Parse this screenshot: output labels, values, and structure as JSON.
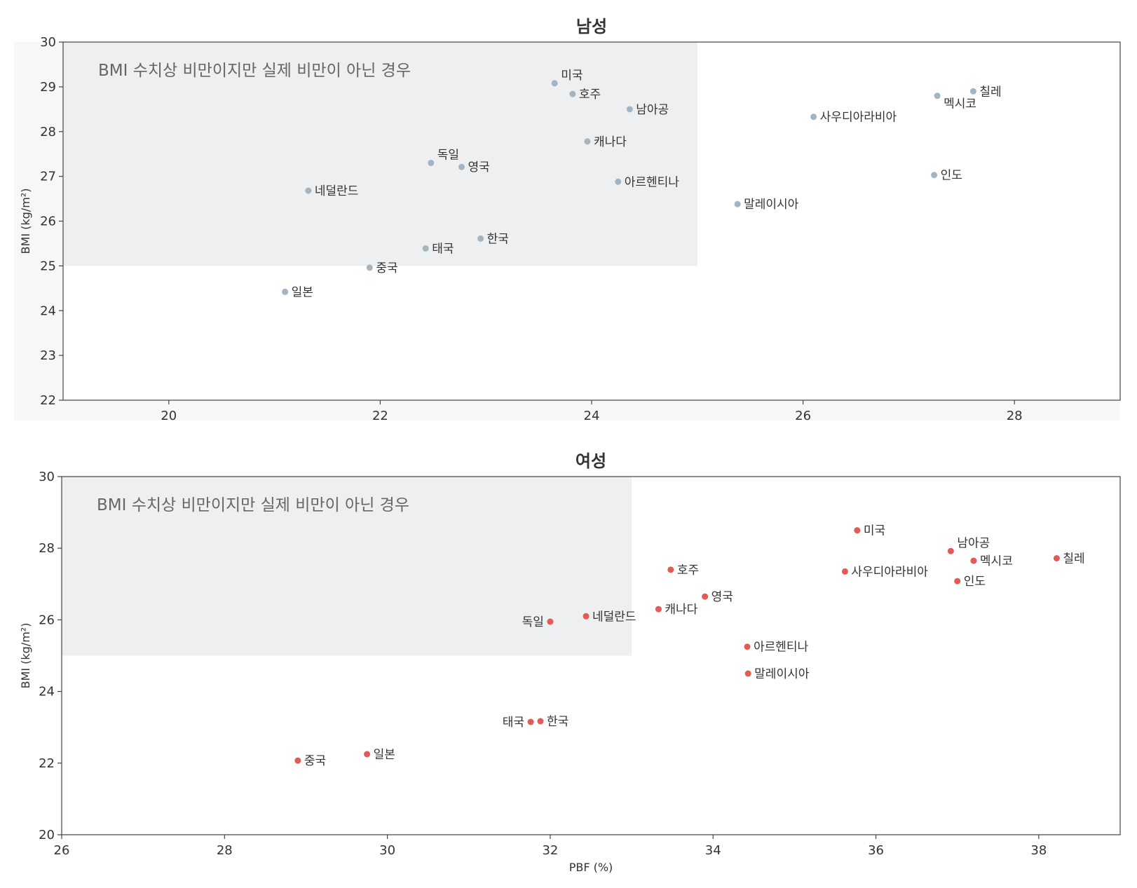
{
  "colors": {
    "male": "#a4b4c0",
    "female": "#e15b57",
    "shade": "#eeeff1",
    "frame": "#444444"
  },
  "chart_data": [
    {
      "type": "scatter",
      "title": "남성",
      "xlabel": "",
      "ylabel": "BMI (kg/m²)",
      "xlim": [
        19,
        29
      ],
      "ylim": [
        22,
        30
      ],
      "xticks": [
        20,
        22,
        24,
        26,
        28
      ],
      "yticks": [
        22,
        23,
        24,
        25,
        26,
        27,
        28,
        29,
        30
      ],
      "shade": {
        "x": [
          19,
          25
        ],
        "y": [
          25,
          30
        ],
        "label": "BMI 수치상 비만이지만 실제 비만이 아닌 경우"
      },
      "points": [
        {
          "label": "미국",
          "x": 23.65,
          "y": 29.08
        },
        {
          "label": "호주",
          "x": 23.82,
          "y": 28.84
        },
        {
          "label": "남아공",
          "x": 24.36,
          "y": 28.5
        },
        {
          "label": "캐나다",
          "x": 23.96,
          "y": 27.78
        },
        {
          "label": "독일",
          "x": 22.48,
          "y": 27.3
        },
        {
          "label": "영국",
          "x": 22.77,
          "y": 27.21
        },
        {
          "label": "아르헨티나",
          "x": 24.25,
          "y": 26.88
        },
        {
          "label": "네덜란드",
          "x": 21.32,
          "y": 26.68
        },
        {
          "label": "한국",
          "x": 22.95,
          "y": 25.61
        },
        {
          "label": "태국",
          "x": 22.43,
          "y": 25.39
        },
        {
          "label": "중국",
          "x": 21.9,
          "y": 24.96
        },
        {
          "label": "일본",
          "x": 21.1,
          "y": 24.42
        },
        {
          "label": "사우디아라비아",
          "x": 26.1,
          "y": 28.33
        },
        {
          "label": "말레이시아",
          "x": 25.38,
          "y": 26.38
        },
        {
          "label": "멕시코",
          "x": 27.27,
          "y": 28.8
        },
        {
          "label": "칠레",
          "x": 27.61,
          "y": 28.9
        },
        {
          "label": "인도",
          "x": 27.24,
          "y": 27.03
        }
      ]
    },
    {
      "type": "scatter",
      "title": "여성",
      "xlabel": "PBF (%)",
      "ylabel": "BMI (kg/m²)",
      "xlim": [
        26,
        39
      ],
      "ylim": [
        20,
        30
      ],
      "xticks": [
        26,
        28,
        30,
        32,
        34,
        36,
        38
      ],
      "yticks": [
        20,
        22,
        24,
        26,
        28,
        30
      ],
      "shade": {
        "x": [
          26,
          33
        ],
        "y": [
          25,
          30
        ],
        "label": "BMI 수치상 비만이지만 실제 비만이 아닌 경우"
      },
      "points": [
        {
          "label": "미국",
          "x": 35.77,
          "y": 28.5
        },
        {
          "label": "남아공",
          "x": 36.92,
          "y": 27.92
        },
        {
          "label": "멕시코",
          "x": 37.2,
          "y": 27.65
        },
        {
          "label": "칠레",
          "x": 38.22,
          "y": 27.72
        },
        {
          "label": "사우디아라비아",
          "x": 35.62,
          "y": 27.35
        },
        {
          "label": "인도",
          "x": 37.0,
          "y": 27.08
        },
        {
          "label": "호주",
          "x": 33.48,
          "y": 27.4
        },
        {
          "label": "영국",
          "x": 33.9,
          "y": 26.65
        },
        {
          "label": "캐나다",
          "x": 33.33,
          "y": 26.3
        },
        {
          "label": "네덜란드",
          "x": 32.44,
          "y": 26.1
        },
        {
          "label": "독일",
          "x": 32.0,
          "y": 25.95
        },
        {
          "label": "아르헨티나",
          "x": 34.42,
          "y": 25.25
        },
        {
          "label": "말레이시아",
          "x": 34.43,
          "y": 24.5
        },
        {
          "label": "태국",
          "x": 31.76,
          "y": 23.15
        },
        {
          "label": "한국",
          "x": 31.88,
          "y": 23.17
        },
        {
          "label": "일본",
          "x": 29.75,
          "y": 22.25
        },
        {
          "label": "중국",
          "x": 28.9,
          "y": 22.07
        }
      ]
    }
  ]
}
